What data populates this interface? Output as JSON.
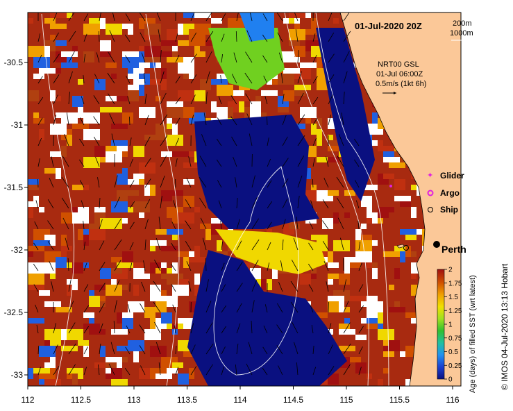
{
  "map": {
    "title": "01-Jul-2020 20Z",
    "depth_legend": [
      "200m",
      "1000m"
    ],
    "current_info": [
      "NRT00 GSL",
      "01-Jul 06:00Z",
      "0.5m/s (1kt 6h)"
    ],
    "markers": [
      {
        "label": "Glider",
        "color": "#e020e0"
      },
      {
        "label": "Argo",
        "color": "#e020e0"
      },
      {
        "label": "Ship",
        "color": "#000000"
      }
    ],
    "city": "Perth",
    "x_ticks": [
      "112",
      "112.5",
      "113",
      "113.5",
      "114",
      "114.5",
      "115",
      "115.5",
      "116"
    ],
    "y_ticks": [
      "-30.5",
      "-31",
      "-31.5",
      "-32",
      "-32.5",
      "-33"
    ],
    "colorbar": {
      "label": "Age (days) of filled SST (wrt latest)",
      "ticks": [
        "0",
        "0.25",
        "0.5",
        "0.75",
        "1",
        "1.25",
        "1.5",
        "1.75",
        "2"
      ],
      "colors": [
        "#0a1080",
        "#1a40d0",
        "#2090f0",
        "#20c0c0",
        "#30c030",
        "#a0e020",
        "#f0e000",
        "#f0a000",
        "#d05000",
        "#a01010"
      ]
    },
    "credit": "© IMOS 04-Jul-2020 13:13 Hobart",
    "colors": {
      "land": "#fbc898",
      "ocean_deep": "#0a1080",
      "ocean_red": "#a02010"
    }
  }
}
